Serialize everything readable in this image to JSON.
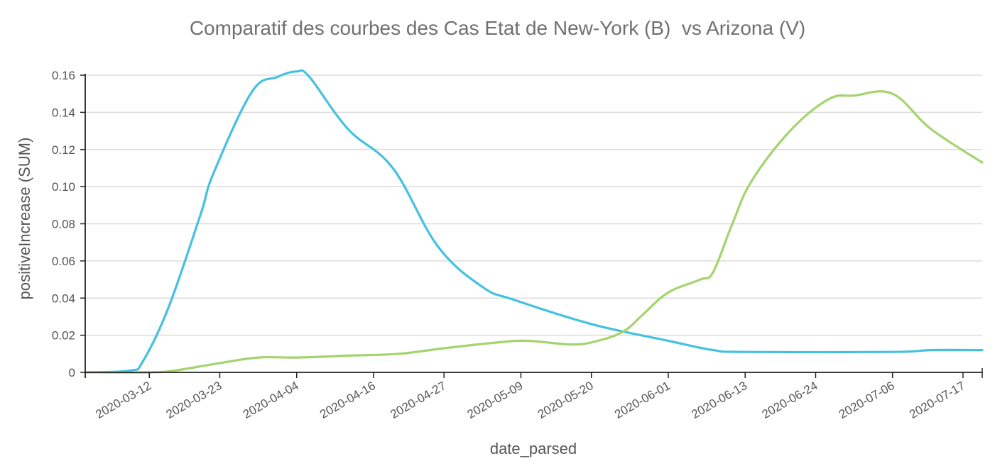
{
  "chart_data": {
    "type": "line",
    "title": "Comparatif des courbes des Cas Etat de New-York (B)  vs Arizona (V)",
    "xlabel": "date_parsed",
    "ylabel": "positiveIncrease (SUM)",
    "ylim": [
      0,
      0.16
    ],
    "y_ticks": [
      "0",
      "0.02",
      "0.04",
      "0.06",
      "0.08",
      "0.10",
      "0.12",
      "0.14",
      "0.16"
    ],
    "x_ticks": [
      "2020-03-12",
      "2020-03-23",
      "2020-04-04",
      "2020-04-16",
      "2020-04-27",
      "2020-05-09",
      "2020-05-20",
      "2020-06-01",
      "2020-06-13",
      "2020-06-24",
      "2020-07-06",
      "2020-07-17"
    ],
    "xlim": [
      "2020-03-02",
      "2020-07-20"
    ],
    "grid": true,
    "series": [
      {
        "color": "#45c1e0",
        "points": [
          [
            "2020-03-02",
            0.0
          ],
          [
            "2020-03-09",
            0.001
          ],
          [
            "2020-03-11",
            0.006
          ],
          [
            "2020-03-15",
            0.035
          ],
          [
            "2020-03-20",
            0.085
          ],
          [
            "2020-03-22",
            0.107
          ],
          [
            "2020-03-28",
            0.151
          ],
          [
            "2020-04-01",
            0.159
          ],
          [
            "2020-04-04",
            0.162
          ],
          [
            "2020-04-06",
            0.159
          ],
          [
            "2020-04-12",
            0.131
          ],
          [
            "2020-04-19",
            0.11
          ],
          [
            "2020-04-26",
            0.068
          ],
          [
            "2020-05-03",
            0.046
          ],
          [
            "2020-05-08",
            0.039
          ],
          [
            "2020-05-20",
            0.026
          ],
          [
            "2020-06-01",
            0.017
          ],
          [
            "2020-06-08",
            0.012
          ],
          [
            "2020-06-13",
            0.011
          ],
          [
            "2020-07-06",
            0.011
          ],
          [
            "2020-07-12",
            0.012
          ],
          [
            "2020-07-20",
            0.012
          ]
        ]
      },
      {
        "color": "#a3d46d",
        "points": [
          [
            "2020-03-02",
            0.0
          ],
          [
            "2020-03-12",
            0.0
          ],
          [
            "2020-03-16",
            0.001
          ],
          [
            "2020-03-23",
            0.005
          ],
          [
            "2020-03-29",
            0.008
          ],
          [
            "2020-04-04",
            0.008
          ],
          [
            "2020-04-12",
            0.009
          ],
          [
            "2020-04-20",
            0.01
          ],
          [
            "2020-04-27",
            0.013
          ],
          [
            "2020-05-05",
            0.016
          ],
          [
            "2020-05-10",
            0.017
          ],
          [
            "2020-05-17",
            0.015
          ],
          [
            "2020-05-21",
            0.017
          ],
          [
            "2020-05-25",
            0.022
          ],
          [
            "2020-05-28",
            0.031
          ],
          [
            "2020-06-01",
            0.043
          ],
          [
            "2020-06-06",
            0.05
          ],
          [
            "2020-06-08",
            0.054
          ],
          [
            "2020-06-11",
            0.08
          ],
          [
            "2020-06-14",
            0.103
          ],
          [
            "2020-06-20",
            0.13
          ],
          [
            "2020-06-26",
            0.147
          ],
          [
            "2020-06-30",
            0.149
          ],
          [
            "2020-07-06",
            0.15
          ],
          [
            "2020-07-12",
            0.131
          ],
          [
            "2020-07-20",
            0.113
          ]
        ]
      }
    ]
  }
}
